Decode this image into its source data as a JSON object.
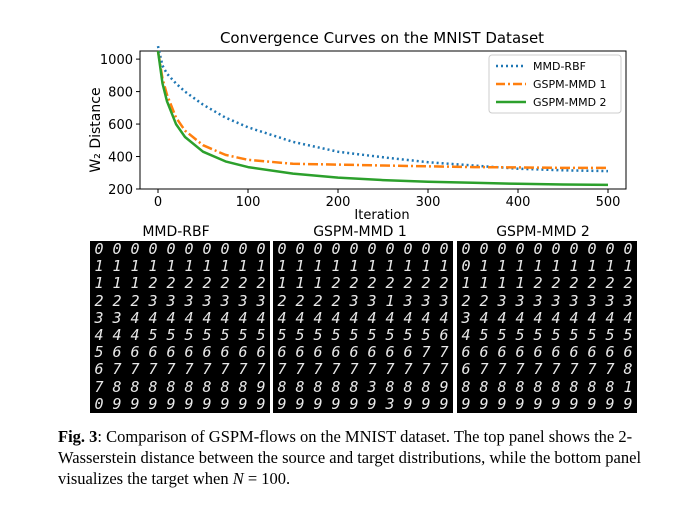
{
  "chart_data": {
    "type": "line",
    "title": "Convergence Curves on the MNIST Dataset",
    "xlabel": "Iteration",
    "ylabel": "W₂ Distance",
    "xlim": [
      0,
      500
    ],
    "ylim": [
      200,
      1050
    ],
    "xticks": [
      0,
      100,
      200,
      300,
      400,
      500
    ],
    "yticks": [
      200,
      400,
      600,
      800,
      1000
    ],
    "legend_position": "top-right",
    "series": [
      {
        "name": "MMD-RBF",
        "color": "#1f77b4",
        "style": "dotted",
        "x": [
          0,
          5,
          10,
          20,
          30,
          50,
          75,
          100,
          150,
          200,
          250,
          300,
          350,
          400,
          450,
          500
        ],
        "y": [
          1080,
          960,
          910,
          850,
          800,
          720,
          640,
          580,
          490,
          430,
          395,
          365,
          345,
          325,
          315,
          310
        ]
      },
      {
        "name": "GSPM-MMD 1",
        "color": "#ff7f0e",
        "style": "dashdot",
        "x": [
          0,
          5,
          10,
          20,
          30,
          50,
          75,
          100,
          150,
          200,
          250,
          300,
          350,
          400,
          450,
          500
        ],
        "y": [
          1050,
          880,
          780,
          640,
          560,
          470,
          410,
          380,
          355,
          350,
          345,
          340,
          335,
          333,
          330,
          330
        ]
      },
      {
        "name": "GSPM-MMD 2",
        "color": "#2ca02c",
        "style": "solid",
        "x": [
          0,
          5,
          10,
          20,
          30,
          50,
          75,
          100,
          150,
          200,
          250,
          300,
          350,
          400,
          450,
          500
        ],
        "y": [
          1050,
          850,
          740,
          600,
          520,
          430,
          370,
          335,
          295,
          270,
          255,
          245,
          238,
          232,
          228,
          225
        ]
      }
    ]
  },
  "panels": [
    {
      "title": "MMD-RBF",
      "rows": [
        "0000000000",
        "1111111111",
        "1112222222",
        "2223333333",
        "3344444444",
        "4445555555",
        "5666666666",
        "6777777777",
        "7888888889",
        "0999999999"
      ]
    },
    {
      "title": "GSPM-MMD 1",
      "rows": [
        "0000000000",
        "1111111111",
        "1112222222",
        "2222331333",
        "4444444444",
        "5555555556",
        "6666666677",
        "7777777777",
        "8888838889",
        "9999993999"
      ]
    },
    {
      "title": "GSPM-MMD 2",
      "rows": [
        "0000000000",
        "0111111111",
        "1111222222",
        "2233333333",
        "3444444444",
        "4555555555",
        "6666666666",
        "6777777778",
        "8888888881",
        "9999999999"
      ]
    }
  ],
  "caption": {
    "label": "Fig. 3",
    "text_1": ": Comparison of GSPM-flows on the MNIST dataset. The top panel shows the 2-Wasserstein distance between the source and target distributions, while the bottom panel visualizes the target when ",
    "var": "N",
    "text_2": " = 100."
  }
}
